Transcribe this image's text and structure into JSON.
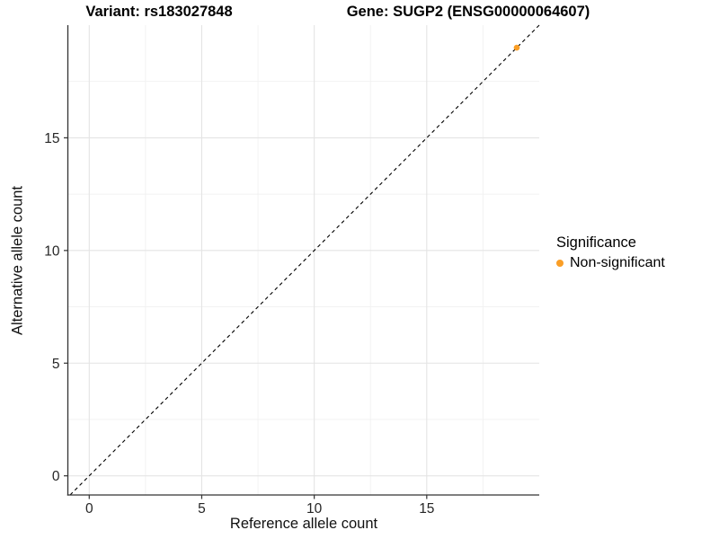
{
  "titles": {
    "left": "Variant: rs183027848",
    "right": "Gene: SUGP2 (ENSG00000064607)"
  },
  "chart_data": {
    "type": "scatter",
    "xlabel": "Reference allele count",
    "ylabel": "Alternative allele count",
    "x_ticks": [
      0,
      5,
      10,
      15
    ],
    "y_ticks": [
      0,
      5,
      10,
      15
    ],
    "x_minor_gridlines": [
      2.5,
      7.5,
      12.5,
      17.5
    ],
    "y_minor_gridlines": [
      2.5,
      7.5,
      12.5,
      17.5
    ],
    "xlim": [
      -0.95,
      20.0
    ],
    "ylim": [
      -0.85,
      20.0
    ],
    "grid": "on",
    "points": [
      {
        "x": 19,
        "y": 19,
        "series": "Non-significant"
      }
    ],
    "identity_line": {
      "style": "dashed",
      "slope": 1,
      "intercept": 0,
      "from": -0.85,
      "to": 20.0
    },
    "legend": {
      "position": "right",
      "title": "Significance",
      "items": [
        {
          "label": "Non-significant",
          "color": "#FA9E26"
        }
      ]
    },
    "colors": {
      "point": "#FA9E26",
      "grid_major": "#E4E4E4",
      "grid_minor": "#F1F1F1",
      "axis_line": "#333333",
      "tick": "#333333",
      "dashed_line": "#000000"
    }
  }
}
